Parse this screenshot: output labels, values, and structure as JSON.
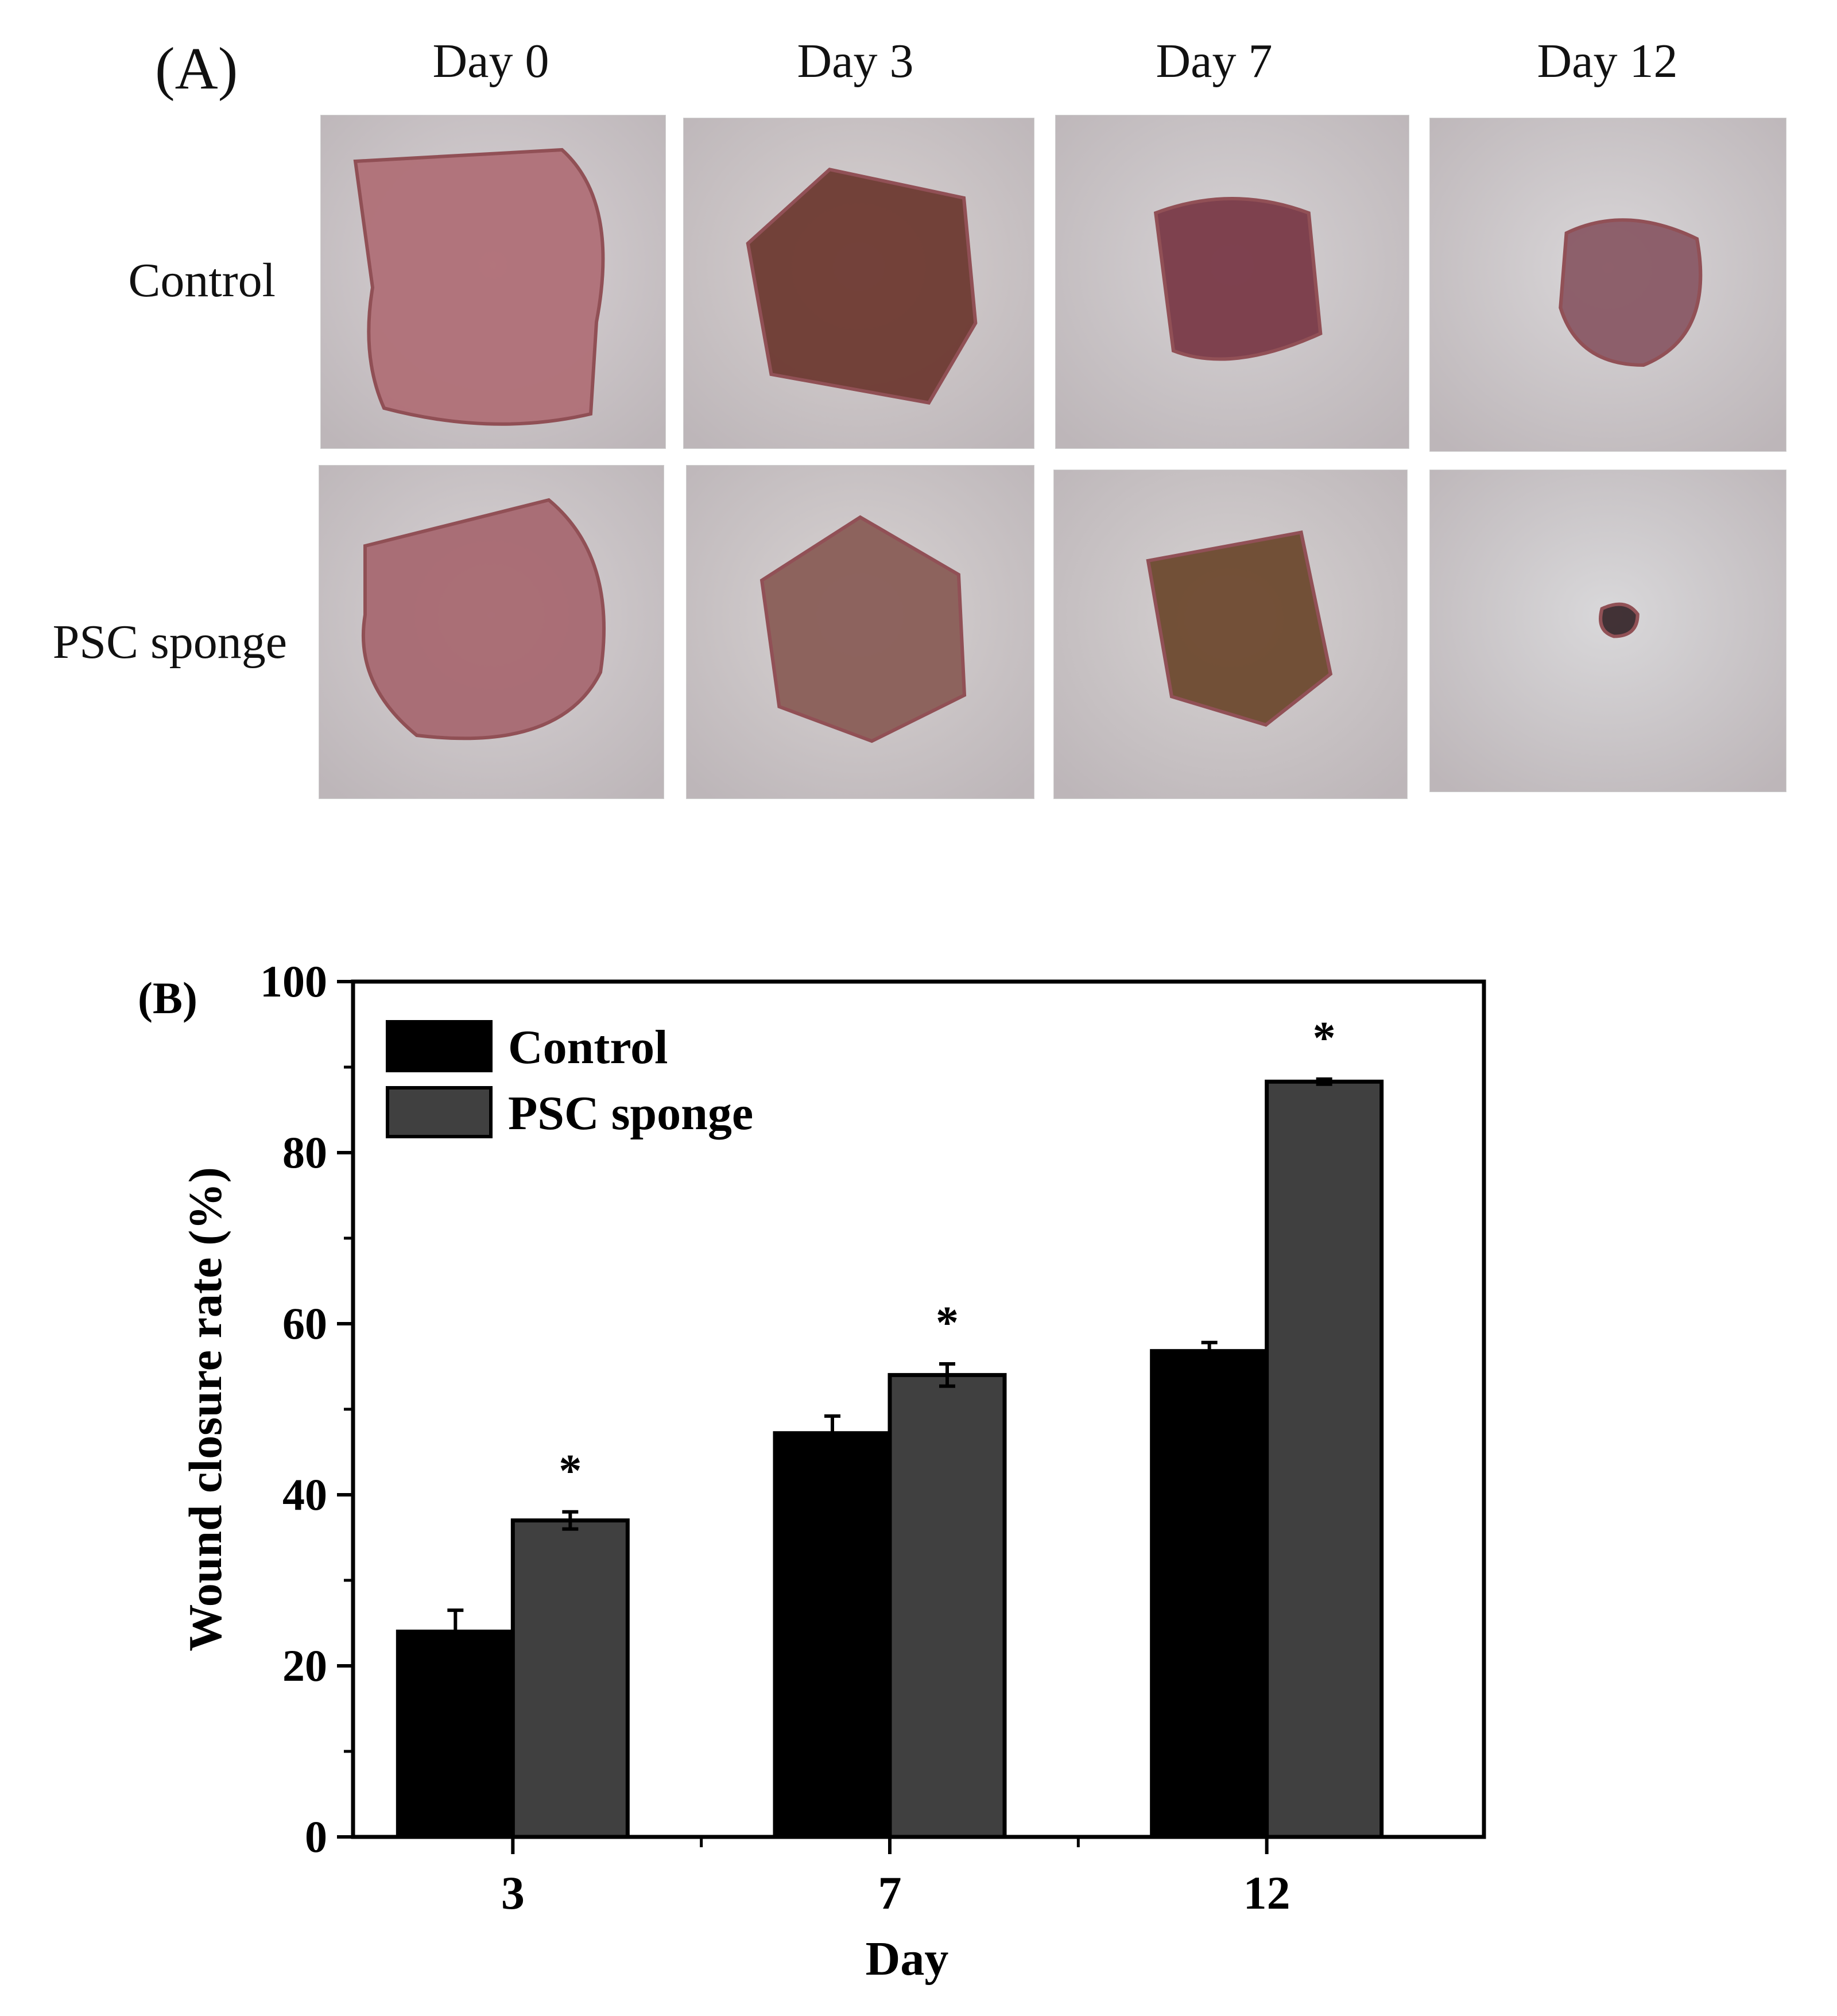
{
  "panel_a": {
    "label": "(A)",
    "columns": [
      "Day 0",
      "Day 3",
      "Day 7",
      "Day 12"
    ],
    "rows": [
      "Control",
      "PSC sponge"
    ],
    "photos": [
      {
        "name": "control-day0-photo",
        "wound_color": "#b07078",
        "skin_color": "#d9d3d6"
      },
      {
        "name": "control-day3-photo",
        "wound_color": "#6e3a32",
        "skin_color": "#d8d2d2"
      },
      {
        "name": "control-day7-photo",
        "wound_color": "#7a3a48",
        "skin_color": "#d6d2d4"
      },
      {
        "name": "control-day12-photo",
        "wound_color": "#8a5a66",
        "skin_color": "#d9d6d8"
      },
      {
        "name": "psc-day0-photo",
        "wound_color": "#a86a72",
        "skin_color": "#d8d3d5"
      },
      {
        "name": "psc-day3-photo",
        "wound_color": "#8a5e58",
        "skin_color": "#d8d3d3"
      },
      {
        "name": "psc-day7-photo",
        "wound_color": "#6e4a30",
        "skin_color": "#d6d2d2"
      },
      {
        "name": "psc-day12-photo",
        "wound_color": "#3a2a2e",
        "skin_color": "#d9d8da"
      }
    ]
  },
  "chart_data": {
    "type": "bar",
    "panel_label": "(B)",
    "categories": [
      "3",
      "7",
      "12"
    ],
    "series": [
      {
        "name": "Control",
        "values": [
          24.0,
          47.2,
          56.8
        ],
        "errors": [
          2.5,
          2.0,
          1.0
        ],
        "color": "#000000"
      },
      {
        "name": "PSC sponge",
        "values": [
          37.0,
          54.0,
          88.3
        ],
        "errors": [
          1.0,
          1.3,
          0.3
        ],
        "color": "#404040"
      }
    ],
    "significance": [
      "*",
      "*",
      "*"
    ],
    "xlabel": "Day",
    "ylabel": "Wound closure rate (%)",
    "ylim": [
      0,
      100
    ],
    "yticks": [
      0,
      20,
      40,
      60,
      80,
      100
    ],
    "legend_position": "top-left",
    "grid": false
  }
}
